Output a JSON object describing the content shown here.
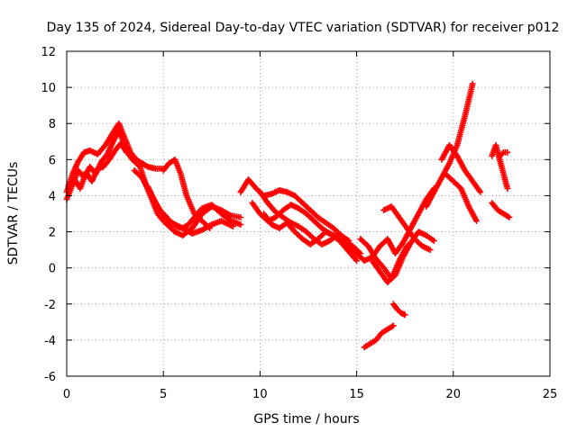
{
  "chart_data": {
    "type": "scatter",
    "title": "Day 135 of 2024, Sidereal Day-to-day VTEC variation (SDTVAR) for receiver p012",
    "xlabel": "GPS time / hours",
    "ylabel": "SDTVAR / TECUs",
    "xlim": [
      0,
      25
    ],
    "ylim": [
      -6,
      12
    ],
    "xticks": [
      0,
      5,
      10,
      15,
      20,
      25
    ],
    "yticks": [
      -6,
      -4,
      -2,
      0,
      2,
      4,
      6,
      8,
      10,
      12
    ],
    "xtick_labels": [
      "0",
      "5",
      "10",
      "15",
      "20",
      "25"
    ],
    "ytick_labels": [
      "-6",
      "-4",
      "-2",
      "0",
      "2",
      "4",
      "6",
      "8",
      "10",
      "12"
    ],
    "grid": true,
    "marker": "+",
    "color": "#ff0000",
    "series": [
      {
        "name": "track-1",
        "x": [
          0.0,
          0.3,
          0.6,
          0.9,
          1.2,
          1.6,
          2.0,
          2.4,
          2.7,
          3.0,
          3.3,
          3.6,
          3.9,
          4.2,
          4.6,
          5.0
        ],
        "y": [
          4.2,
          5.2,
          5.9,
          6.4,
          6.5,
          6.3,
          6.8,
          7.5,
          8.0,
          7.2,
          6.4,
          6.0,
          5.8,
          5.6,
          5.5,
          5.5
        ]
      },
      {
        "name": "track-2",
        "x": [
          0.0,
          0.3,
          0.6,
          0.9,
          1.2,
          1.5,
          1.8,
          2.1,
          2.4,
          2.7,
          3.0,
          3.3
        ],
        "y": [
          3.8,
          4.6,
          5.4,
          5.0,
          5.6,
          5.2,
          5.9,
          6.3,
          7.0,
          7.6,
          6.8,
          6.3
        ]
      },
      {
        "name": "track-3",
        "x": [
          0.1,
          0.4,
          0.7,
          1.0,
          1.3,
          1.6,
          1.9,
          2.2,
          2.5,
          2.8,
          3.1
        ],
        "y": [
          4.6,
          4.9,
          4.4,
          5.3,
          4.8,
          5.5,
          5.6,
          6.0,
          6.5,
          6.9,
          6.4
        ]
      },
      {
        "name": "track-4",
        "x": [
          3.0,
          3.4,
          3.8,
          4.1,
          4.4,
          4.7,
          5.0,
          5.3,
          5.6,
          6.0,
          6.5,
          7.0,
          7.5,
          8.0,
          8.5,
          9.0
        ],
        "y": [
          6.6,
          6.0,
          5.6,
          4.6,
          3.8,
          3.0,
          2.6,
          2.3,
          2.0,
          1.8,
          2.2,
          3.0,
          3.4,
          3.2,
          2.9,
          2.8
        ]
      },
      {
        "name": "track-5",
        "x": [
          3.5,
          3.9,
          4.2,
          4.5,
          4.8,
          5.1,
          5.4,
          5.7,
          6.0,
          6.3,
          6.6,
          7.0,
          7.5,
          8.0,
          8.5,
          9.0
        ],
        "y": [
          5.4,
          5.0,
          4.4,
          3.8,
          3.2,
          2.9,
          2.5,
          2.3,
          2.2,
          2.4,
          2.8,
          3.3,
          3.5,
          3.0,
          2.6,
          2.4
        ]
      },
      {
        "name": "track-6",
        "x": [
          4.2,
          4.6,
          5.0,
          5.3,
          5.6,
          6.0,
          6.5,
          7.0,
          7.5,
          8.0,
          8.6
        ],
        "y": [
          4.5,
          3.6,
          2.9,
          2.6,
          2.4,
          2.2,
          1.9,
          2.1,
          2.4,
          2.6,
          2.3
        ]
      },
      {
        "name": "track-7",
        "x": [
          5.0,
          5.3,
          5.6,
          5.9,
          6.2,
          6.6,
          7.0,
          7.4
        ],
        "y": [
          5.4,
          5.8,
          6.0,
          5.2,
          4.0,
          3.0,
          2.6,
          2.2
        ]
      },
      {
        "name": "track-8",
        "x": [
          9.0,
          9.4,
          9.8,
          10.2,
          10.6,
          11.0,
          11.4,
          11.8,
          12.2,
          12.6,
          13.0,
          13.4,
          13.8,
          14.2,
          14.6
        ],
        "y": [
          4.2,
          4.9,
          4.4,
          4.0,
          4.1,
          4.3,
          4.2,
          4.0,
          3.6,
          3.2,
          2.8,
          2.5,
          2.2,
          1.8,
          1.5
        ]
      },
      {
        "name": "track-9",
        "x": [
          9.6,
          10.0,
          10.4,
          10.8,
          11.2,
          11.6,
          12.0,
          12.4,
          12.8,
          13.2,
          13.6,
          14.0,
          14.4,
          14.8,
          15.2
        ],
        "y": [
          3.6,
          3.0,
          2.6,
          2.8,
          3.2,
          3.5,
          3.3,
          3.0,
          2.6,
          2.2,
          1.9,
          1.7,
          1.5,
          1.2,
          0.8
        ]
      },
      {
        "name": "track-10",
        "x": [
          10.0,
          10.4,
          10.8,
          11.2,
          11.6,
          12.0,
          12.4,
          12.8,
          13.2,
          13.6,
          14.0,
          14.4,
          14.8,
          15.2
        ],
        "y": [
          4.2,
          3.6,
          3.1,
          2.8,
          2.5,
          2.3,
          2.0,
          1.6,
          1.3,
          1.5,
          1.8,
          1.4,
          1.0,
          0.6
        ]
      },
      {
        "name": "track-11",
        "x": [
          10.2,
          10.6,
          11.0,
          11.4,
          11.8,
          12.2,
          12.6,
          13.0,
          13.4,
          13.8,
          14.2,
          14.6,
          15.0
        ],
        "y": [
          3.0,
          2.4,
          2.2,
          2.5,
          2.0,
          1.6,
          1.3,
          1.6,
          2.0,
          1.8,
          1.4,
          0.9,
          0.4
        ]
      },
      {
        "name": "track-12",
        "x": [
          15.0,
          15.4,
          15.8,
          16.2,
          16.6,
          17.0,
          17.4,
          17.8,
          18.2,
          18.6,
          19.0
        ],
        "y": [
          0.8,
          0.4,
          0.6,
          1.2,
          1.6,
          0.8,
          1.4,
          2.2,
          3.0,
          3.8,
          4.4
        ]
      },
      {
        "name": "track-13",
        "x": [
          15.2,
          15.6,
          16.0,
          16.4,
          16.8,
          17.2,
          17.6,
          18.0
        ],
        "y": [
          1.6,
          1.2,
          0.5,
          0.0,
          -0.6,
          0.4,
          1.2,
          1.6
        ]
      },
      {
        "name": "track-14",
        "x": [
          15.8,
          16.2,
          16.6,
          17.0,
          17.4,
          17.8,
          18.2,
          18.6,
          19.0
        ],
        "y": [
          0.4,
          -0.2,
          -0.8,
          -0.4,
          0.6,
          1.4,
          2.0,
          1.8,
          1.5
        ]
      },
      {
        "name": "track-15",
        "x": [
          16.4,
          16.8,
          17.2,
          17.6,
          18.0,
          18.4,
          18.8
        ],
        "y": [
          3.2,
          3.4,
          2.8,
          2.2,
          1.6,
          1.2,
          1.0
        ]
      },
      {
        "name": "track-16",
        "x": [
          15.4,
          15.7,
          16.0,
          16.3,
          16.6,
          16.9
        ],
        "y": [
          -4.4,
          -4.2,
          -4.0,
          -3.6,
          -3.4,
          -3.2
        ]
      },
      {
        "name": "track-17",
        "x": [
          16.9,
          17.1,
          17.3,
          17.5
        ],
        "y": [
          -2.0,
          -2.3,
          -2.5,
          -2.6
        ]
      },
      {
        "name": "track-18",
        "x": [
          18.6,
          19.0,
          19.4,
          19.8,
          20.2,
          20.6,
          21.0
        ],
        "y": [
          3.4,
          4.2,
          5.0,
          5.8,
          6.8,
          8.4,
          10.2
        ]
      },
      {
        "name": "track-19",
        "x": [
          19.4,
          19.8,
          20.2,
          20.6,
          21.0,
          21.4
        ],
        "y": [
          6.0,
          6.8,
          6.2,
          5.4,
          4.8,
          4.2
        ]
      },
      {
        "name": "track-20",
        "x": [
          19.6,
          20.0,
          20.4,
          20.8,
          21.2
        ],
        "y": [
          5.2,
          4.8,
          4.4,
          3.4,
          2.6
        ]
      },
      {
        "name": "track-21",
        "x": [
          22.0,
          22.2,
          22.4,
          22.6,
          22.8
        ],
        "y": [
          6.2,
          6.8,
          6.0,
          5.2,
          4.4
        ]
      },
      {
        "name": "track-22",
        "x": [
          22.0,
          22.3,
          22.6,
          22.9
        ],
        "y": [
          3.6,
          3.2,
          3.0,
          2.8
        ]
      },
      {
        "name": "track-23",
        "x": [
          22.4,
          22.6,
          22.8
        ],
        "y": [
          6.2,
          6.4,
          6.4
        ]
      }
    ]
  }
}
